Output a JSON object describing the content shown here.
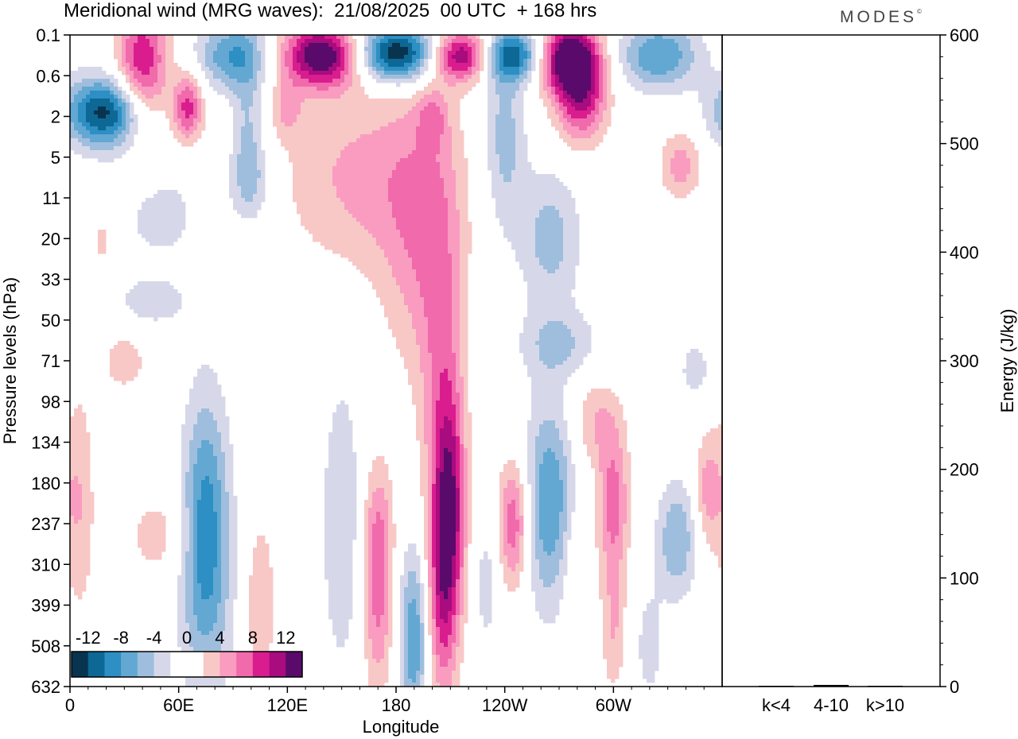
{
  "title": "Meridional wind (MRG waves):  21/08/2025  00 UTC  + 168 hrs",
  "brand": "MODES",
  "brand_mark": "©",
  "colors": {
    "scale": [
      "#08344f",
      "#0e6896",
      "#2d8fc3",
      "#62a8d2",
      "#9fbedd",
      "#d6d8ea",
      "#ffffff",
      "#ffffff",
      "#f8c8c6",
      "#f99cc0",
      "#f06aac",
      "#d91d8e",
      "#a80c7e",
      "#5a0a6a"
    ]
  },
  "chart_data": [
    {
      "type": "heatmap",
      "title": "Meridional wind (MRG waves)",
      "xlabel": "Longitude",
      "ylabel": "Pressure levels (hPa)",
      "x_ticks": [
        "0",
        "60E",
        "120E",
        "180",
        "120W",
        "60W"
      ],
      "x_tick_values": [
        0,
        60,
        120,
        180,
        240,
        300
      ],
      "xlim": [
        0,
        360
      ],
      "y_ticks": [
        "0.1",
        "0.6",
        "2",
        "5",
        "11",
        "20",
        "33",
        "50",
        "71",
        "98",
        "134",
        "180",
        "237",
        "310",
        "399",
        "508",
        "632"
      ],
      "colorbar": {
        "levels": [
          -12,
          -8,
          -4,
          0,
          4,
          8,
          12
        ],
        "labels": [
          "-12",
          "-8",
          "-4",
          "0",
          "4",
          "8",
          "12"
        ]
      },
      "features": [
        {
          "sign": 1,
          "lon": 40,
          "lev": 0.8,
          "w": 10,
          "h": 1.2,
          "amp": 10
        },
        {
          "sign": -1,
          "lon": 20,
          "lev": 1.9,
          "w": 16,
          "h": 0.6,
          "amp": 13
        },
        {
          "sign": 1,
          "lon": 65,
          "lev": 1.8,
          "w": 6,
          "h": 0.6,
          "amp": 9
        },
        {
          "sign": -1,
          "lon": 90,
          "lev": 0.5,
          "w": 14,
          "h": 0.6,
          "amp": 8
        },
        {
          "sign": -1,
          "lon": 98,
          "lev": 2.2,
          "w": 6,
          "h": 1.2,
          "amp": 4
        },
        {
          "sign": -1,
          "lon": 100,
          "lev": 3.6,
          "w": 8,
          "h": 0.7,
          "amp": 4
        },
        {
          "sign": 1,
          "lon": 140,
          "lev": 0.5,
          "w": 16,
          "h": 0.55,
          "amp": 15
        },
        {
          "sign": -1,
          "lon": 180,
          "lev": 0.45,
          "w": 18,
          "h": 0.5,
          "amp": 15
        },
        {
          "sign": 1,
          "lon": 215,
          "lev": 0.5,
          "w": 12,
          "h": 0.45,
          "amp": 13
        },
        {
          "sign": -1,
          "lon": 245,
          "lev": 0.5,
          "w": 12,
          "h": 0.45,
          "amp": 11
        },
        {
          "sign": 1,
          "lon": 275,
          "lev": 0.55,
          "w": 12,
          "h": 0.6,
          "amp": 14
        },
        {
          "sign": 1,
          "lon": 282,
          "lev": 1.5,
          "w": 10,
          "h": 0.8,
          "amp": 10
        },
        {
          "sign": -1,
          "lon": 325,
          "lev": 0.5,
          "w": 16,
          "h": 0.6,
          "amp": 8
        },
        {
          "sign": -1,
          "lon": 240,
          "lev": 2.5,
          "w": 8,
          "h": 1.6,
          "amp": 5
        },
        {
          "sign": 1,
          "lon": 160,
          "lev": 3.5,
          "w": 30,
          "h": 1.6,
          "amp": 4.5
        },
        {
          "sign": 1,
          "lon": 195,
          "lev": 5.0,
          "w": 16,
          "h": 2.4,
          "amp": 5
        },
        {
          "sign": 1,
          "lon": 337,
          "lev": 3.2,
          "w": 8,
          "h": 0.6,
          "amp": 5
        },
        {
          "sign": -1,
          "lon": 50,
          "lev": 4.4,
          "w": 22,
          "h": 1.2,
          "amp": 2.5
        },
        {
          "sign": -1,
          "lon": 265,
          "lev": 5.0,
          "w": 12,
          "h": 1.2,
          "amp": 5
        },
        {
          "sign": -1,
          "lon": 270,
          "lev": 7.6,
          "w": 16,
          "h": 0.6,
          "amp": 4
        },
        {
          "sign": -1,
          "lon": 45,
          "lev": 6.6,
          "w": 14,
          "h": 0.4,
          "amp": 3
        },
        {
          "sign": 1,
          "lon": 18,
          "lev": 5.0,
          "w": 5,
          "h": 0.8,
          "amp": 3
        },
        {
          "sign": 1,
          "lon": 30,
          "lev": 8.0,
          "w": 10,
          "h": 0.6,
          "amp": 3
        },
        {
          "sign": 1,
          "lon": 205,
          "lev": 9.5,
          "w": 8,
          "h": 3.5,
          "amp": 5
        },
        {
          "sign": 1,
          "lon": 210,
          "lev": 11.6,
          "w": 6,
          "h": 2.0,
          "amp": 9
        },
        {
          "sign": 1,
          "lon": 205,
          "lev": 14.0,
          "w": 6,
          "h": 1.8,
          "amp": 6
        },
        {
          "sign": -1,
          "lon": 75,
          "lev": 11.8,
          "w": 9,
          "h": 2.2,
          "amp": 8
        },
        {
          "sign": -1,
          "lon": 75,
          "lev": 14.0,
          "w": 12,
          "h": 2.0,
          "amp": 3
        },
        {
          "sign": -1,
          "lon": 150,
          "lev": 12.0,
          "w": 8,
          "h": 2.6,
          "amp": 4
        },
        {
          "sign": -1,
          "lon": 265,
          "lev": 11.5,
          "w": 10,
          "h": 1.8,
          "amp": 8
        },
        {
          "sign": 1,
          "lon": 245,
          "lev": 12.0,
          "w": 6,
          "h": 1.1,
          "amp": 8
        },
        {
          "sign": 1,
          "lon": 170,
          "lev": 12.0,
          "w": 6,
          "h": 1.2,
          "amp": 4
        },
        {
          "sign": 1,
          "lon": 170,
          "lev": 14.0,
          "w": 6,
          "h": 1.6,
          "amp": 6
        },
        {
          "sign": 1,
          "lon": 300,
          "lev": 11.5,
          "w": 6,
          "h": 1.2,
          "amp": 7
        },
        {
          "sign": 1,
          "lon": 290,
          "lev": 9.5,
          "w": 10,
          "h": 0.8,
          "amp": 4
        },
        {
          "sign": -1,
          "lon": 335,
          "lev": 12.4,
          "w": 8,
          "h": 1.0,
          "amp": 6
        },
        {
          "sign": -1,
          "lon": 345,
          "lev": 8.2,
          "w": 5,
          "h": 0.4,
          "amp": 4
        },
        {
          "sign": 1,
          "lon": 352,
          "lev": 11.2,
          "w": 5,
          "h": 1.0,
          "amp": 5
        },
        {
          "sign": -1,
          "lon": 190,
          "lev": 14.8,
          "w": 6,
          "h": 1.6,
          "amp": 8
        },
        {
          "sign": 1,
          "lon": 5,
          "lev": 11.5,
          "w": 6,
          "h": 2.0,
          "amp": 4
        },
        {
          "sign": 1,
          "lon": 50,
          "lev": 12.3,
          "w": 14,
          "h": 0.8,
          "amp": 3
        },
        {
          "sign": 1,
          "lon": 105,
          "lev": 14.0,
          "w": 6,
          "h": 1.5,
          "amp": 4
        },
        {
          "sign": 1,
          "lon": 300,
          "lev": 14.5,
          "w": 5,
          "h": 1.2,
          "amp": 4
        },
        {
          "sign": 1,
          "lon": 280,
          "lev": 13.0,
          "w": 6,
          "h": 1.2,
          "amp": 3
        },
        {
          "sign": -1,
          "lon": 230,
          "lev": 13.5,
          "w": 5,
          "h": 1.2,
          "amp": 3
        },
        {
          "sign": -1,
          "lon": 320,
          "lev": 15.0,
          "w": 6,
          "h": 1.0,
          "amp": 3
        },
        {
          "sign": 1,
          "lon": 200,
          "lev": 2.0,
          "w": 6,
          "h": 0.5,
          "amp": 4
        },
        {
          "sign": 1,
          "lon": 120,
          "lev": 1.8,
          "w": 6,
          "h": 0.5,
          "amp": 4
        }
      ]
    },
    {
      "type": "bar",
      "title": "Energy",
      "ylabel": "Energy (J/kg)",
      "categories": [
        "k<4",
        "4-10",
        "k>10"
      ],
      "values": [
        0.5,
        1.5,
        0.3
      ],
      "ylim": [
        0,
        600
      ],
      "y_ticks": [
        "0",
        "100",
        "200",
        "300",
        "400",
        "500",
        "600"
      ],
      "y_tick_values": [
        0,
        100,
        200,
        300,
        400,
        500,
        600
      ]
    }
  ]
}
